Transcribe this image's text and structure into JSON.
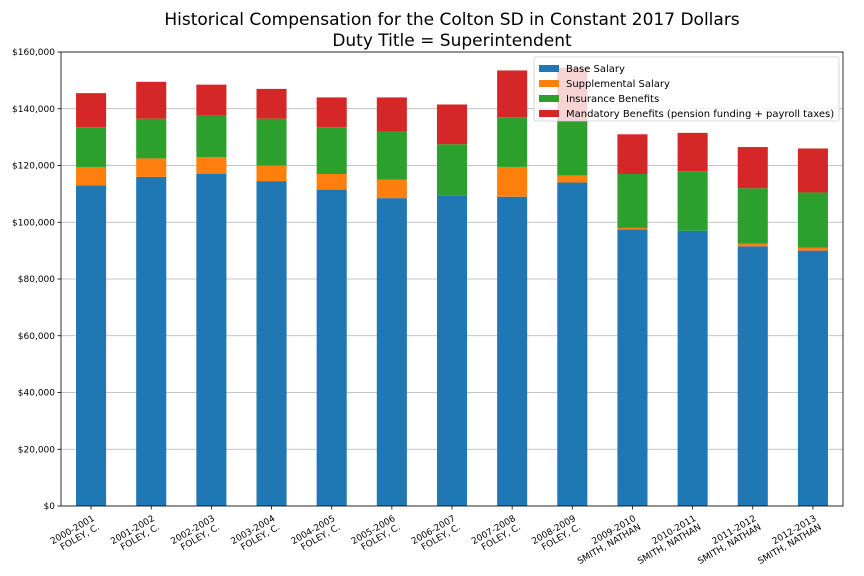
{
  "chart_data": {
    "type": "bar",
    "stacked": true,
    "title": "Historical Compensation for the Colton SD in Constant 2017 Dollars",
    "subtitle": "Duty Title = Superintendent",
    "xlabel": "",
    "ylabel": "",
    "ylim": [
      0,
      160000
    ],
    "yticks": [
      0,
      20000,
      40000,
      60000,
      80000,
      100000,
      120000,
      140000,
      160000
    ],
    "ytick_labels": [
      "$0",
      "$20,000",
      "$40,000",
      "$60,000",
      "$80,000",
      "$100,000",
      "$120,000",
      "$140,000",
      "$160,000"
    ],
    "grid": true,
    "legend_position": "top-right",
    "categories": [
      {
        "year": "2000-2001",
        "name": "FOLEY, C."
      },
      {
        "year": "2001-2002",
        "name": "FOLEY, C."
      },
      {
        "year": "2002-2003",
        "name": "FOLEY, C."
      },
      {
        "year": "2003-2004",
        "name": "FOLEY, C."
      },
      {
        "year": "2004-2005",
        "name": "FOLEY, C."
      },
      {
        "year": "2005-2006",
        "name": "FOLEY, C."
      },
      {
        "year": "2006-2007",
        "name": "FOLEY, C."
      },
      {
        "year": "2007-2008",
        "name": "FOLEY, C."
      },
      {
        "year": "2008-2009",
        "name": "FOLEY, C."
      },
      {
        "year": "2009-2010",
        "name": "SMITH, NATHAN"
      },
      {
        "year": "2010-2011",
        "name": "SMITH, NATHAN"
      },
      {
        "year": "2011-2012",
        "name": "SMITH, NATHAN"
      },
      {
        "year": "2012-2013",
        "name": "SMITH, NATHAN"
      }
    ],
    "series": [
      {
        "name": "Base Salary",
        "color": "#1f77b4",
        "values": [
          113000,
          116000,
          117000,
          114500,
          111500,
          108500,
          109500,
          109000,
          114000,
          97500,
          97000,
          91500,
          90000
        ]
      },
      {
        "name": "Supplemental Salary",
        "color": "#ff7f0e",
        "values": [
          6500,
          6500,
          6000,
          5500,
          5500,
          6500,
          0,
          10500,
          2500,
          500,
          0,
          1000,
          1000
        ]
      },
      {
        "name": "Insurance Benefits",
        "color": "#2ca02c",
        "values": [
          14000,
          14000,
          14500,
          16500,
          16500,
          17000,
          18000,
          17500,
          19000,
          19000,
          21000,
          19500,
          19500
        ]
      },
      {
        "name": "Mandatory Benefits (pension funding + payroll taxes)",
        "color": "#d62728",
        "values": [
          12000,
          13000,
          11000,
          10500,
          10500,
          12000,
          14000,
          16500,
          19000,
          14000,
          13500,
          14500,
          15500
        ]
      }
    ]
  }
}
